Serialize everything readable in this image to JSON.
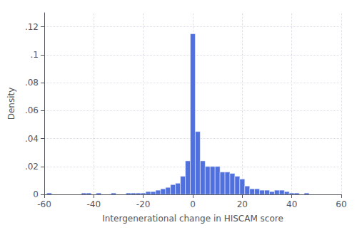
{
  "chart_data": {
    "type": "bar",
    "xlabel": "Intergenerational change in HISCAM score",
    "ylabel": "Density",
    "x": [
      -58,
      -56,
      -54,
      -52,
      -50,
      -48,
      -46,
      -44,
      -42,
      -40,
      -38,
      -36,
      -34,
      -32,
      -30,
      -28,
      -26,
      -24,
      -22,
      -20,
      -18,
      -16,
      -14,
      -12,
      -10,
      -8,
      -6,
      -4,
      -2,
      0,
      2,
      4,
      6,
      8,
      10,
      12,
      14,
      16,
      18,
      20,
      22,
      24,
      26,
      28,
      30,
      32,
      34,
      36,
      38,
      40,
      42,
      44,
      46,
      48,
      50,
      52,
      54,
      56,
      58
    ],
    "values": [
      0.001,
      0.0,
      0.0,
      0.0,
      0.0,
      0.0,
      0.0,
      0.001,
      0.001,
      0.0,
      0.001,
      0.0,
      0.0,
      0.001,
      0.0,
      0.0,
      0.001,
      0.001,
      0.001,
      0.001,
      0.002,
      0.002,
      0.003,
      0.004,
      0.005,
      0.007,
      0.008,
      0.013,
      0.024,
      0.115,
      0.045,
      0.024,
      0.02,
      0.02,
      0.02,
      0.016,
      0.016,
      0.015,
      0.013,
      0.011,
      0.006,
      0.004,
      0.004,
      0.003,
      0.003,
      0.002,
      0.003,
      0.003,
      0.002,
      0.001,
      0.001,
      0.0,
      0.001,
      0.0,
      0.0,
      0.0,
      0.0,
      0.0,
      0.0
    ],
    "bin_width": 2,
    "xlim": [
      -60,
      60
    ],
    "ylim": [
      0,
      0.13
    ],
    "xticks": [
      -60,
      -40,
      -20,
      0,
      20,
      40,
      60
    ],
    "yticks": [
      0,
      {
        "value": 0.02,
        "label": ".02"
      },
      {
        "value": 0.04,
        "label": ".04"
      },
      {
        "value": 0.06,
        "label": ".06"
      },
      {
        "value": 0.08,
        "label": ".08"
      },
      {
        "value": 0.1,
        "label": ".1"
      },
      {
        "value": 0.12,
        "label": ".12"
      }
    ],
    "grid": true
  }
}
